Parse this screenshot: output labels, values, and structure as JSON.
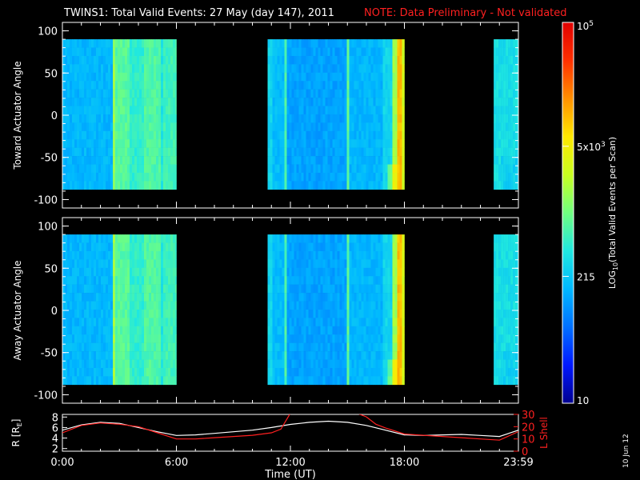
{
  "header": {
    "title": "TWINS1: Total Valid Events: 27 May (day 147), 2011",
    "note": "NOTE: Data Preliminary - Not validated"
  },
  "stamp": "10 Jun 12",
  "chart_data": [
    {
      "type": "heatmap",
      "ylabel": "Toward Actuator Angle",
      "ylim": [
        -110,
        110
      ],
      "yticks": [
        100,
        50,
        0,
        -50,
        -100
      ],
      "angle_range": [
        -88,
        90
      ],
      "xlim_hours": [
        0,
        24
      ],
      "data_intervals_hours": [
        [
          0,
          6.0
        ],
        [
          10.8,
          18.0
        ],
        [
          22.7,
          24
        ]
      ]
    },
    {
      "type": "heatmap",
      "ylabel": "Away Actuator Angle",
      "ylim": [
        -110,
        110
      ],
      "yticks": [
        100,
        50,
        0,
        -50,
        -100
      ],
      "angle_range": [
        -88,
        90
      ],
      "xlim_hours": [
        0,
        24
      ],
      "data_intervals_hours": [
        [
          0,
          6.0
        ],
        [
          10.8,
          18.0
        ],
        [
          22.7,
          24
        ]
      ]
    },
    {
      "type": "line",
      "ylabel_left": "R [R",
      "ylabel_left_sub": "E",
      "ylabel_left_end": "]",
      "ylabel_right": "L Shell",
      "yticks_left": [
        2,
        4,
        6,
        8
      ],
      "yticks_right": [
        0,
        10,
        20,
        30
      ],
      "ylim_left": [
        1.5,
        8.5
      ],
      "ylim_right": [
        0,
        30
      ],
      "xlabel": "Time (UT)",
      "xticks": [
        "0:00",
        "6:00",
        "12:00",
        "18:00",
        "23:59"
      ],
      "xtick_hours": [
        0,
        6,
        12,
        18,
        24
      ],
      "series": [
        {
          "axis": "left",
          "color": "#ffffff",
          "x": [
            0,
            1,
            2,
            3,
            4,
            5,
            6,
            7,
            8,
            9,
            10,
            11,
            12,
            13,
            14,
            15,
            16,
            17,
            18,
            19,
            20,
            21,
            22,
            23,
            24
          ],
          "y": [
            5.5,
            6.5,
            7.0,
            6.8,
            6.0,
            5.2,
            4.5,
            4.6,
            4.9,
            5.2,
            5.5,
            6.0,
            6.6,
            7.0,
            7.2,
            7.0,
            6.4,
            5.5,
            4.6,
            4.5,
            4.6,
            4.7,
            4.5,
            4.3,
            5.5
          ]
        },
        {
          "axis": "right",
          "color": "#ff2020",
          "x": [
            0,
            1,
            2,
            3,
            4,
            5,
            6,
            7,
            8,
            9,
            10,
            11,
            11.5,
            12,
            15.5,
            16,
            16.5,
            17,
            18,
            19,
            20,
            21,
            22,
            23,
            24
          ],
          "y": [
            15,
            21,
            23,
            22,
            20,
            15,
            10,
            10,
            11,
            12,
            13,
            15,
            18,
            31,
            31,
            28,
            22,
            19,
            14,
            13,
            12,
            11,
            10,
            9,
            16
          ]
        }
      ]
    }
  ],
  "colorbar": {
    "label_main": "LOG",
    "label_sub": "10",
    "label_rest": "(Total Valid Events per Scan)",
    "min": 10,
    "max": 100000,
    "ticks": [
      {
        "value": 10,
        "base": "10",
        "exp": ""
      },
      {
        "value": 215,
        "base": "215",
        "exp": ""
      },
      {
        "value": 5000,
        "base": "5x10",
        "exp": "3"
      },
      {
        "value": 100000,
        "base": "10",
        "exp": "5"
      }
    ],
    "colors": [
      "#000090",
      "#0018ff",
      "#0070ff",
      "#00b8ff",
      "#20e8e0",
      "#70ff80",
      "#c8ff20",
      "#ffe800",
      "#ff9000",
      "#ff3000",
      "#e00000"
    ]
  },
  "palette": {
    "axis": "#ffffff",
    "note": "#ff2020",
    "background": "#000000"
  }
}
